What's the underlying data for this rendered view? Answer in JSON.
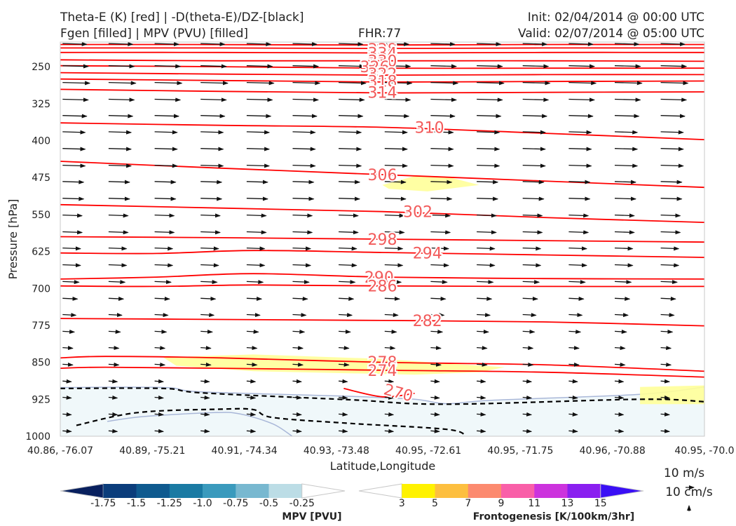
{
  "header": {
    "left_line1": "Theta-E (K) [red] | -D(theta-E)/DZ-[black]",
    "left_line2": "Fgen [filled] | MPV (PVU) [filled]",
    "fhr": "FHR:77",
    "init": "Init: 02/04/2014 @ 00:00 UTC",
    "valid": "Valid: 02/07/2014 @ 05:00 UTC"
  },
  "chart_data": {
    "type": "cross-section",
    "xlabel": "Latitude,Longitude",
    "ylabel": "Pressure [hPa]",
    "x_ticks": [
      "40.86, -76.07",
      "40.89, -75.21",
      "40.91, -74.34",
      "40.93, -73.48",
      "40.95, -72.61",
      "40.95, -71.75",
      "40.96, -70.88",
      "40.95, -70.0"
    ],
    "y_ticks": [
      250,
      325,
      400,
      475,
      550,
      625,
      700,
      775,
      850,
      925,
      1000
    ],
    "ylim": [
      1000,
      200
    ],
    "colors": {
      "theta_e": "#ff0000",
      "theta_e_label": "#f25a5a",
      "dthetae_dz": "#000000",
      "fgen_3_5": "#ffff99",
      "mpv_shade": "#f0f8fa",
      "mpv_outline": "#a9b7d8",
      "wind_arrow": "#111111"
    },
    "theta_e_contours": [
      {
        "value": 342,
        "label": "342",
        "points": [
          [
            0,
            205
          ],
          [
            0.2,
            205
          ],
          [
            0.5,
            206
          ],
          [
            0.75,
            205
          ],
          [
            1,
            205
          ]
        ]
      },
      {
        "value": 338,
        "label": "338",
        "points": [
          [
            0,
            212
          ],
          [
            0.25,
            212
          ],
          [
            0.5,
            213
          ],
          [
            0.75,
            212
          ],
          [
            1,
            212
          ]
        ]
      },
      {
        "value": 334,
        "label": "334",
        "points": [
          [
            0,
            221
          ],
          [
            0.25,
            221
          ],
          [
            0.5,
            222
          ],
          [
            0.75,
            221
          ],
          [
            1,
            221
          ]
        ]
      },
      {
        "value": 330,
        "label": "330",
        "points": [
          [
            0,
            236
          ],
          [
            0.25,
            238
          ],
          [
            0.5,
            238
          ],
          [
            0.75,
            238
          ],
          [
            1,
            239
          ]
        ]
      },
      {
        "value": 326,
        "label": "326",
        "points": [
          [
            0,
            248
          ],
          [
            0.25,
            250
          ],
          [
            0.5,
            253
          ],
          [
            0.75,
            253
          ],
          [
            1,
            253
          ]
        ]
      },
      {
        "value": 322,
        "label": "322",
        "points": [
          [
            0,
            262
          ],
          [
            0.25,
            265
          ],
          [
            0.5,
            267
          ],
          [
            0.75,
            266
          ],
          [
            1,
            266
          ]
        ]
      },
      {
        "value": 318,
        "label": "318",
        "points": [
          [
            0,
            275
          ],
          [
            0.25,
            278
          ],
          [
            0.5,
            281
          ],
          [
            0.75,
            280
          ],
          [
            1,
            279
          ]
        ]
      },
      {
        "value": 314,
        "label": "314",
        "points": [
          [
            0,
            296
          ],
          [
            0.25,
            300
          ],
          [
            0.5,
            303
          ],
          [
            0.75,
            302
          ],
          [
            1,
            301
          ]
        ]
      },
      {
        "value": 310,
        "label": "310",
        "points": [
          [
            0,
            364
          ],
          [
            0.25,
            369
          ],
          [
            0.5,
            373
          ],
          [
            0.75,
            385
          ],
          [
            1,
            398
          ]
        ]
      },
      {
        "value": 306,
        "label": "306",
        "points": [
          [
            0,
            442
          ],
          [
            0.25,
            456
          ],
          [
            0.5,
            469
          ],
          [
            0.75,
            482
          ],
          [
            1,
            495
          ]
        ]
      },
      {
        "value": 302,
        "label": "302",
        "points": [
          [
            0,
            530
          ],
          [
            0.25,
            537
          ],
          [
            0.5,
            544
          ],
          [
            0.75,
            556
          ],
          [
            1,
            566
          ]
        ]
      },
      {
        "value": 298,
        "label": "298",
        "points": [
          [
            0,
            595
          ],
          [
            0.25,
            597
          ],
          [
            0.5,
            600
          ],
          [
            0.75,
            603
          ],
          [
            1,
            606
          ]
        ]
      },
      {
        "value": 294,
        "label": "294",
        "points": [
          [
            0,
            628
          ],
          [
            0.15,
            629
          ],
          [
            0.3,
            623
          ],
          [
            0.5,
            627
          ],
          [
            0.75,
            632
          ],
          [
            1,
            637
          ]
        ]
      },
      {
        "value": 290,
        "label": "290",
        "points": [
          [
            0,
            681
          ],
          [
            0.15,
            677
          ],
          [
            0.3,
            670
          ],
          [
            0.5,
            677
          ],
          [
            0.75,
            680
          ],
          [
            1,
            681
          ]
        ]
      },
      {
        "value": 286,
        "label": "286",
        "points": [
          [
            0,
            695
          ],
          [
            0.15,
            696
          ],
          [
            0.3,
            693
          ],
          [
            0.5,
            695
          ],
          [
            0.75,
            696
          ],
          [
            1,
            696
          ]
        ]
      },
      {
        "value": 282,
        "label": "282",
        "points": [
          [
            0,
            761
          ],
          [
            0.25,
            763
          ],
          [
            0.5,
            765
          ],
          [
            0.75,
            768
          ],
          [
            1,
            776
          ]
        ]
      },
      {
        "value": 278,
        "label": "278",
        "points": [
          [
            0,
            841
          ],
          [
            0.07,
            838
          ],
          [
            0.25,
            841
          ],
          [
            0.5,
            850
          ],
          [
            0.75,
            855
          ],
          [
            1,
            868
          ]
        ]
      },
      {
        "value": 274,
        "label": "274",
        "points": [
          [
            0,
            862
          ],
          [
            0.07,
            860
          ],
          [
            0.25,
            862
          ],
          [
            0.5,
            866
          ],
          [
            0.75,
            870
          ],
          [
            1,
            880
          ]
        ]
      },
      {
        "value": 270,
        "label": "270",
        "points": [
          [
            0.44,
            903
          ],
          [
            0.5,
            920
          ],
          [
            0.55,
            913
          ]
        ]
      }
    ],
    "contour_labels": [
      {
        "text": "342",
        "x": 0.5,
        "y": 207
      },
      {
        "text": "338",
        "x": 0.5,
        "y": 214
      },
      {
        "text": "334",
        "x": 0.5,
        "y": 222
      },
      {
        "text": "330",
        "x": 0.5,
        "y": 238
      },
      {
        "text": "326",
        "x": 0.488,
        "y": 250
      },
      {
        "text": "322",
        "x": 0.5,
        "y": 264
      },
      {
        "text": "318",
        "x": 0.5,
        "y": 279
      },
      {
        "text": "314",
        "x": 0.5,
        "y": 302
      },
      {
        "text": "310",
        "x": 0.573,
        "y": 373
      },
      {
        "text": "306",
        "x": 0.5,
        "y": 469
      },
      {
        "text": "302",
        "x": 0.555,
        "y": 544
      },
      {
        "text": "298",
        "x": 0.5,
        "y": 600
      },
      {
        "text": "294",
        "x": 0.57,
        "y": 628
      },
      {
        "text": "290",
        "x": 0.495,
        "y": 677
      },
      {
        "text": "286",
        "x": 0.5,
        "y": 695
      },
      {
        "text": "282",
        "x": 0.57,
        "y": 765
      },
      {
        "text": "278",
        "x": 0.5,
        "y": 849
      },
      {
        "text": "274",
        "x": 0.5,
        "y": 866
      },
      {
        "text": "270",
        "x": 0.525,
        "y": 911
      }
    ],
    "dthetae_dz_contours": [
      {
        "points": [
          [
            0,
            903
          ],
          [
            0.16,
            903
          ],
          [
            0.22,
            912
          ],
          [
            0.45,
            926
          ],
          [
            0.6,
            935
          ],
          [
            0.9,
            925
          ],
          [
            1,
            930
          ]
        ]
      },
      {
        "points": [
          [
            0.025,
            978
          ],
          [
            0.12,
            952
          ],
          [
            0.25,
            945
          ],
          [
            0.3,
            946
          ],
          [
            0.33,
            962
          ],
          [
            0.45,
            974
          ],
          [
            0.6,
            986
          ],
          [
            0.63,
            1000
          ]
        ]
      }
    ],
    "mpv_outline": {
      "points": [
        [
          0,
          901
        ],
        [
          0.16,
          901
        ],
        [
          0.22,
          910
        ],
        [
          0.45,
          919
        ],
        [
          0.55,
          925
        ],
        [
          0.6,
          934
        ],
        [
          0.67,
          927
        ],
        [
          0.9,
          915
        ],
        [
          1,
          900
        ]
      ]
    },
    "mpv_lower_outline": {
      "points": [
        [
          0.073,
          970
        ],
        [
          0.13,
          960
        ],
        [
          0.24,
          952
        ],
        [
          0.28,
          955
        ],
        [
          0.33,
          975
        ],
        [
          0.36,
          1000
        ]
      ]
    },
    "fgen_regions": [
      {
        "level": "3-5",
        "points": [
          [
            0.5,
            490
          ],
          [
            0.55,
            472
          ],
          [
            0.6,
            473
          ],
          [
            0.65,
            490
          ],
          [
            0.57,
            503
          ],
          [
            0.51,
            498
          ]
        ]
      },
      {
        "level": "3-5",
        "points": [
          [
            0.16,
            840
          ],
          [
            0.3,
            834
          ],
          [
            0.5,
            843
          ],
          [
            0.62,
            854
          ],
          [
            0.69,
            860
          ],
          [
            0.65,
            870
          ],
          [
            0.55,
            875
          ],
          [
            0.3,
            868
          ],
          [
            0.18,
            857
          ]
        ]
      },
      {
        "level": "3-5",
        "points": [
          [
            0.9,
            900
          ],
          [
            1,
            897
          ],
          [
            1,
            935
          ],
          [
            0.9,
            935
          ]
        ]
      }
    ],
    "wind_vectors": {
      "scale": "10 m/s",
      "vertical_scale": "10 cm/s",
      "rows": [
        {
          "p": 203,
          "u": 1.2
        },
        {
          "p": 248,
          "u": 1.3
        },
        {
          "p": 282,
          "u": 1.4
        },
        {
          "p": 316,
          "u": 1.3
        },
        {
          "p": 349,
          "u": 1.2
        },
        {
          "p": 382,
          "u": 1.1
        },
        {
          "p": 416,
          "u": 1.1
        },
        {
          "p": 450,
          "u": 1.1
        },
        {
          "p": 483,
          "u": 1.0
        },
        {
          "p": 517,
          "u": 1.0
        },
        {
          "p": 551,
          "u": 0.9
        },
        {
          "p": 585,
          "u": 0.9
        },
        {
          "p": 618,
          "u": 0.8
        },
        {
          "p": 652,
          "u": 0.8
        },
        {
          "p": 686,
          "u": 0.7
        },
        {
          "p": 720,
          "u": 0.6
        },
        {
          "p": 753,
          "u": 0.5
        },
        {
          "p": 787,
          "u": 0.4
        },
        {
          "p": 820,
          "u": 0.3
        },
        {
          "p": 854,
          "u": 0.3
        },
        {
          "p": 888,
          "u": 0.2
        },
        {
          "p": 921,
          "u": 0.2
        },
        {
          "p": 955,
          "u": 0.2
        },
        {
          "p": 989,
          "u": 0.2
        }
      ]
    }
  },
  "mpv_colorbar": {
    "title": "MPV [PVU]",
    "colors": [
      "#08205e",
      "#0b3d7b",
      "#0f5a8f",
      "#1a7aa3",
      "#3a9abd",
      "#78b8d0",
      "#bcdde6",
      "#ffffff"
    ],
    "labels": [
      "-1.75",
      "-1.5",
      "-1.25",
      "-1.0",
      "-0.75",
      "-0.5",
      "-0.25"
    ]
  },
  "fgen_colorbar": {
    "title": "Frontogenesis [K/100km/3hr]",
    "colors": [
      "#ffffff",
      "#fff200",
      "#fdbf3f",
      "#fc8a6f",
      "#f95fa8",
      "#cc33dd",
      "#8a1ff0",
      "#3a0ff5"
    ],
    "labels": [
      "3",
      "5",
      "7",
      "9",
      "11",
      "13",
      "15"
    ]
  }
}
